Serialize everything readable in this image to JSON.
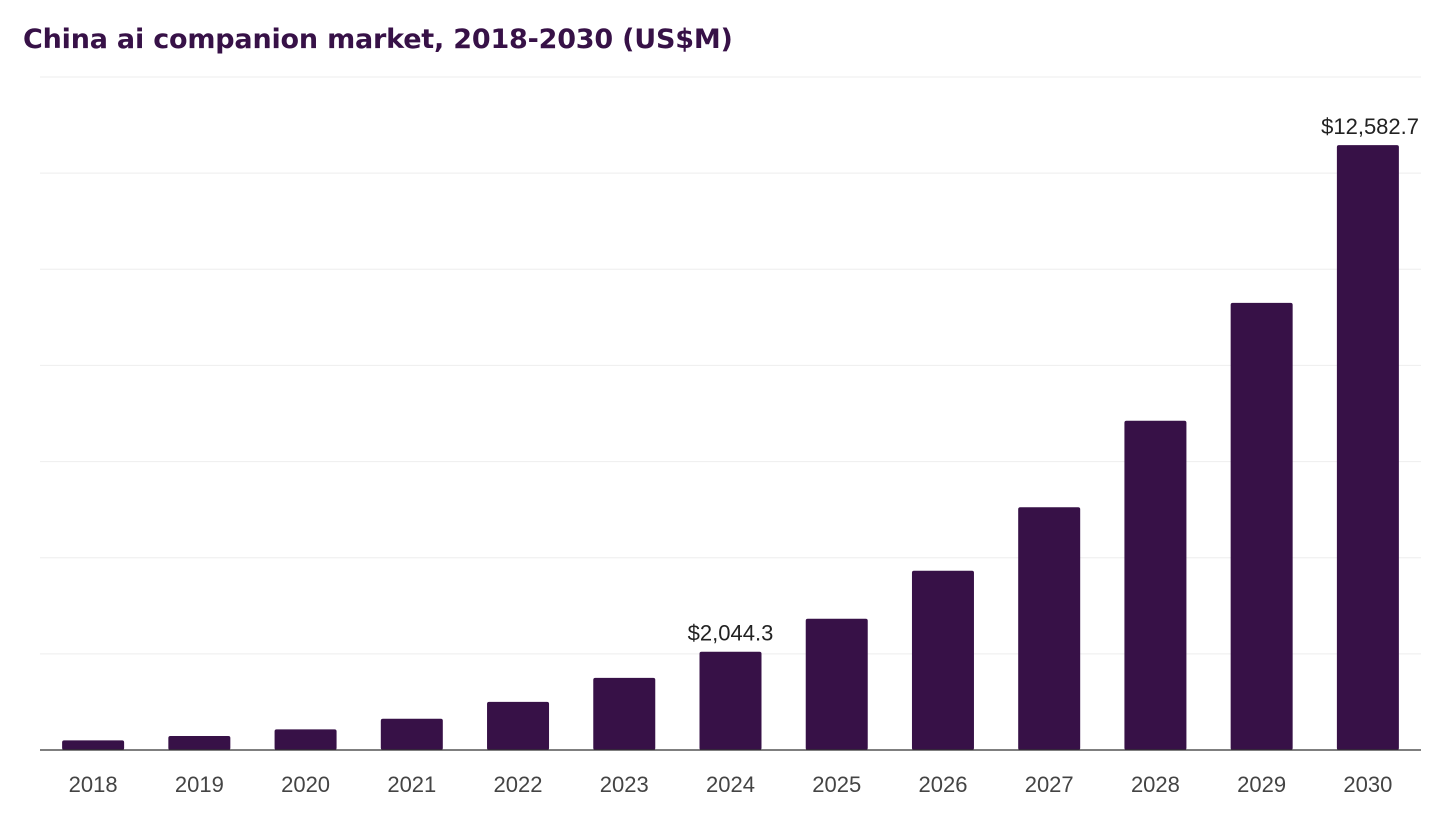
{
  "colors": {
    "bar": "#371147",
    "title": "#371147"
  },
  "chart_data": {
    "type": "bar",
    "title": "China ai companion market, 2018-2030 (US$M)",
    "xlabel": "",
    "ylabel": "",
    "categories": [
      "2018",
      "2019",
      "2020",
      "2021",
      "2022",
      "2023",
      "2024",
      "2025",
      "2026",
      "2027",
      "2028",
      "2029",
      "2030"
    ],
    "values": [
      200,
      290,
      430,
      650,
      1000,
      1500,
      2044.3,
      2730,
      3730,
      5050,
      6850,
      9300,
      12582.7
    ],
    "data_labels": [
      {
        "index": 6,
        "text": "$2,044.3"
      },
      {
        "index": 12,
        "text": "$12,582.7"
      }
    ],
    "ylim": [
      0,
      14000
    ],
    "grid_step": 2000,
    "grid": true,
    "legend": "none"
  }
}
